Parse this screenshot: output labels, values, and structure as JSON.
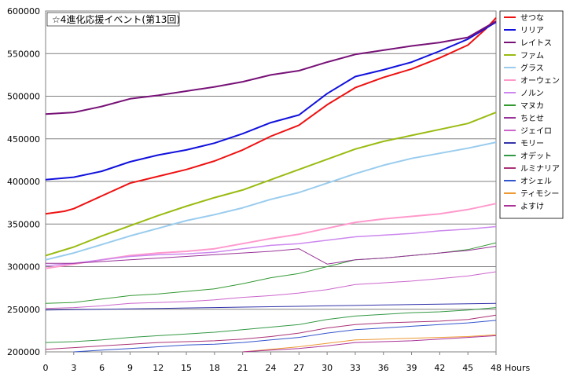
{
  "chart_data": {
    "type": "line",
    "title": "☆4進化応援イベント(第13回)",
    "xlabel": "Hours",
    "ylabel": "",
    "xlim": [
      0,
      48
    ],
    "ylim": [
      200000,
      600000
    ],
    "xticks": [
      "0",
      "3",
      "6",
      "9",
      "12",
      "15",
      "18",
      "21",
      "24",
      "27",
      "30",
      "33",
      "36",
      "39",
      "42",
      "45",
      "48"
    ],
    "yticks": [
      "200000",
      "250000",
      "300000",
      "350000",
      "400000",
      "450000",
      "500000",
      "550000",
      "600000"
    ],
    "grid": "horizontal",
    "legend_position": "right",
    "series": [
      {
        "name": "せつな",
        "color": "#ee1111",
        "width": 2,
        "points": [
          [
            0,
            362000
          ],
          [
            2,
            365000
          ],
          [
            3,
            368000
          ],
          [
            6,
            383000
          ],
          [
            9,
            398000
          ],
          [
            12,
            406000
          ],
          [
            15,
            414000
          ],
          [
            18,
            424000
          ],
          [
            21,
            437000
          ],
          [
            24,
            453000
          ],
          [
            27,
            466000
          ],
          [
            30,
            490000
          ],
          [
            33,
            510000
          ],
          [
            36,
            522000
          ],
          [
            39,
            532000
          ],
          [
            42,
            545000
          ],
          [
            45,
            560000
          ],
          [
            47,
            580000
          ],
          [
            48,
            592000
          ]
        ]
      },
      {
        "name": "リリア",
        "color": "#1111dd",
        "width": 2,
        "points": [
          [
            0,
            402000
          ],
          [
            3,
            405000
          ],
          [
            6,
            412000
          ],
          [
            9,
            423000
          ],
          [
            12,
            431000
          ],
          [
            15,
            437000
          ],
          [
            18,
            445000
          ],
          [
            21,
            456000
          ],
          [
            24,
            469000
          ],
          [
            27,
            478000
          ],
          [
            30,
            503000
          ],
          [
            33,
            523000
          ],
          [
            36,
            531000
          ],
          [
            39,
            540000
          ],
          [
            42,
            553000
          ],
          [
            45,
            567000
          ],
          [
            48,
            587000
          ]
        ]
      },
      {
        "name": "レイトス",
        "color": "#771177",
        "width": 2,
        "points": [
          [
            0,
            479000
          ],
          [
            3,
            481000
          ],
          [
            6,
            488000
          ],
          [
            9,
            497000
          ],
          [
            12,
            501000
          ],
          [
            15,
            506000
          ],
          [
            18,
            511000
          ],
          [
            21,
            517000
          ],
          [
            24,
            525000
          ],
          [
            27,
            530000
          ],
          [
            30,
            540000
          ],
          [
            33,
            549000
          ],
          [
            36,
            554000
          ],
          [
            39,
            559000
          ],
          [
            42,
            563000
          ],
          [
            45,
            569000
          ],
          [
            48,
            588000
          ]
        ]
      },
      {
        "name": "ファム",
        "color": "#99bb11",
        "width": 2,
        "points": [
          [
            0,
            313000
          ],
          [
            3,
            323000
          ],
          [
            6,
            336000
          ],
          [
            9,
            348000
          ],
          [
            12,
            360000
          ],
          [
            15,
            371000
          ],
          [
            18,
            381000
          ],
          [
            21,
            390000
          ],
          [
            24,
            402000
          ],
          [
            27,
            414000
          ],
          [
            30,
            426000
          ],
          [
            33,
            438000
          ],
          [
            36,
            447000
          ],
          [
            39,
            454000
          ],
          [
            42,
            461000
          ],
          [
            45,
            468000
          ],
          [
            48,
            481000
          ]
        ]
      },
      {
        "name": "グラス",
        "color": "#99ccee",
        "width": 2,
        "points": [
          [
            0,
            308000
          ],
          [
            3,
            316000
          ],
          [
            6,
            326000
          ],
          [
            9,
            336000
          ],
          [
            12,
            345000
          ],
          [
            15,
            354000
          ],
          [
            18,
            361000
          ],
          [
            21,
            369000
          ],
          [
            24,
            379000
          ],
          [
            27,
            387000
          ],
          [
            30,
            398000
          ],
          [
            33,
            409000
          ],
          [
            36,
            419000
          ],
          [
            39,
            427000
          ],
          [
            42,
            433000
          ],
          [
            45,
            439000
          ],
          [
            48,
            446000
          ]
        ]
      },
      {
        "name": "オーウェン",
        "color": "#ff99cc",
        "width": 2,
        "points": [
          [
            0,
            298000
          ],
          [
            3,
            303000
          ],
          [
            6,
            308000
          ],
          [
            9,
            313000
          ],
          [
            12,
            316000
          ],
          [
            15,
            318000
          ],
          [
            18,
            321000
          ],
          [
            21,
            327000
          ],
          [
            24,
            333000
          ],
          [
            27,
            338000
          ],
          [
            30,
            345000
          ],
          [
            33,
            352000
          ],
          [
            36,
            356000
          ],
          [
            39,
            359000
          ],
          [
            42,
            362000
          ],
          [
            45,
            367000
          ],
          [
            48,
            374000
          ]
        ]
      },
      {
        "name": "ノルン",
        "color": "#cc88ee",
        "width": 1.5,
        "points": [
          [
            0,
            301000
          ],
          [
            3,
            304000
          ],
          [
            6,
            308000
          ],
          [
            9,
            312000
          ],
          [
            12,
            314000
          ],
          [
            15,
            315000
          ],
          [
            18,
            317000
          ],
          [
            21,
            321000
          ],
          [
            24,
            325000
          ],
          [
            27,
            327000
          ],
          [
            30,
            331000
          ],
          [
            33,
            335000
          ],
          [
            36,
            337000
          ],
          [
            39,
            339000
          ],
          [
            42,
            342000
          ],
          [
            45,
            344000
          ],
          [
            48,
            347000
          ]
        ]
      },
      {
        "name": "マヌカ",
        "color": "#339933",
        "width": 1,
        "points": [
          [
            0,
            257000
          ],
          [
            3,
            258000
          ],
          [
            6,
            262000
          ],
          [
            9,
            266000
          ],
          [
            12,
            268000
          ],
          [
            15,
            271000
          ],
          [
            18,
            274000
          ],
          [
            21,
            280000
          ],
          [
            24,
            287000
          ],
          [
            27,
            292000
          ],
          [
            30,
            300000
          ],
          [
            33,
            308000
          ],
          [
            36,
            310000
          ],
          [
            39,
            313000
          ],
          [
            42,
            316000
          ],
          [
            45,
            320000
          ],
          [
            48,
            328000
          ]
        ]
      },
      {
        "name": "ちとせ",
        "color": "#993399",
        "width": 1,
        "points": [
          [
            0,
            304000
          ],
          [
            3,
            304000
          ],
          [
            6,
            306000
          ],
          [
            9,
            308000
          ],
          [
            12,
            310000
          ],
          [
            15,
            312000
          ],
          [
            18,
            314000
          ],
          [
            21,
            316000
          ],
          [
            24,
            318000
          ],
          [
            27,
            321000
          ],
          [
            30,
            303000
          ],
          [
            33,
            308000
          ],
          [
            36,
            310000
          ],
          [
            39,
            313000
          ],
          [
            42,
            316000
          ],
          [
            45,
            319000
          ],
          [
            48,
            324000
          ]
        ]
      },
      {
        "name": "ジェイロ",
        "color": "#cc66cc",
        "width": 1,
        "points": [
          [
            0,
            251000
          ],
          [
            3,
            252000
          ],
          [
            6,
            254000
          ],
          [
            9,
            257000
          ],
          [
            12,
            258000
          ],
          [
            15,
            259000
          ],
          [
            18,
            261000
          ],
          [
            21,
            264000
          ],
          [
            24,
            266000
          ],
          [
            27,
            269000
          ],
          [
            30,
            273000
          ],
          [
            33,
            279000
          ],
          [
            36,
            281000
          ],
          [
            39,
            283000
          ],
          [
            42,
            286000
          ],
          [
            45,
            289000
          ],
          [
            48,
            294000
          ]
        ]
      },
      {
        "name": "モリー",
        "color": "#3333aa",
        "width": 1,
        "points": [
          [
            0,
            249000
          ],
          [
            3,
            249500
          ],
          [
            6,
            250000
          ],
          [
            9,
            250500
          ],
          [
            12,
            251000
          ],
          [
            15,
            251500
          ],
          [
            18,
            252000
          ],
          [
            21,
            252500
          ],
          [
            24,
            253000
          ],
          [
            27,
            253500
          ],
          [
            30,
            254000
          ],
          [
            33,
            254500
          ],
          [
            36,
            255000
          ],
          [
            39,
            255500
          ],
          [
            42,
            256000
          ],
          [
            45,
            256500
          ],
          [
            48,
            257000
          ]
        ]
      },
      {
        "name": "オデット",
        "color": "#339944",
        "width": 1,
        "points": [
          [
            0,
            211000
          ],
          [
            3,
            212000
          ],
          [
            6,
            214000
          ],
          [
            9,
            217000
          ],
          [
            12,
            219000
          ],
          [
            15,
            221000
          ],
          [
            18,
            223000
          ],
          [
            21,
            226000
          ],
          [
            24,
            229000
          ],
          [
            27,
            232000
          ],
          [
            30,
            238000
          ],
          [
            33,
            242000
          ],
          [
            36,
            244000
          ],
          [
            39,
            246000
          ],
          [
            42,
            247000
          ],
          [
            45,
            249000
          ],
          [
            48,
            252000
          ]
        ]
      },
      {
        "name": "ルミナリア",
        "color": "#aa3377",
        "width": 1,
        "points": [
          [
            0,
            203000
          ],
          [
            3,
            205000
          ],
          [
            6,
            207000
          ],
          [
            9,
            209000
          ],
          [
            12,
            211000
          ],
          [
            15,
            212000
          ],
          [
            18,
            213000
          ],
          [
            21,
            215000
          ],
          [
            24,
            218000
          ],
          [
            27,
            222000
          ],
          [
            30,
            228000
          ],
          [
            33,
            232000
          ],
          [
            36,
            234000
          ],
          [
            39,
            235000
          ],
          [
            42,
            236000
          ],
          [
            45,
            238000
          ],
          [
            48,
            243000
          ]
        ]
      },
      {
        "name": "オシェル",
        "color": "#3355cc",
        "width": 1,
        "points": [
          [
            3,
            200000
          ],
          [
            6,
            202000
          ],
          [
            9,
            204000
          ],
          [
            12,
            206000
          ],
          [
            15,
            208000
          ],
          [
            18,
            209000
          ],
          [
            21,
            211000
          ],
          [
            24,
            214000
          ],
          [
            27,
            217000
          ],
          [
            30,
            222000
          ],
          [
            33,
            226000
          ],
          [
            36,
            228000
          ],
          [
            39,
            230000
          ],
          [
            42,
            232000
          ],
          [
            45,
            234000
          ],
          [
            48,
            237000
          ]
        ]
      },
      {
        "name": "ティモシー",
        "color": "#ee9933",
        "width": 1,
        "points": [
          [
            21,
            200000
          ],
          [
            24,
            203000
          ],
          [
            27,
            206000
          ],
          [
            30,
            210000
          ],
          [
            33,
            214000
          ],
          [
            36,
            215000
          ],
          [
            39,
            216000
          ],
          [
            42,
            217000
          ],
          [
            45,
            218000
          ],
          [
            48,
            220000
          ]
        ]
      },
      {
        "name": "よすけ",
        "color": "#aa3399",
        "width": 1,
        "points": [
          [
            21,
            200000
          ],
          [
            24,
            202000
          ],
          [
            27,
            204000
          ],
          [
            30,
            207000
          ],
          [
            33,
            211000
          ],
          [
            36,
            212000
          ],
          [
            39,
            213000
          ],
          [
            42,
            215000
          ],
          [
            45,
            217000
          ],
          [
            48,
            219000
          ]
        ]
      }
    ]
  }
}
